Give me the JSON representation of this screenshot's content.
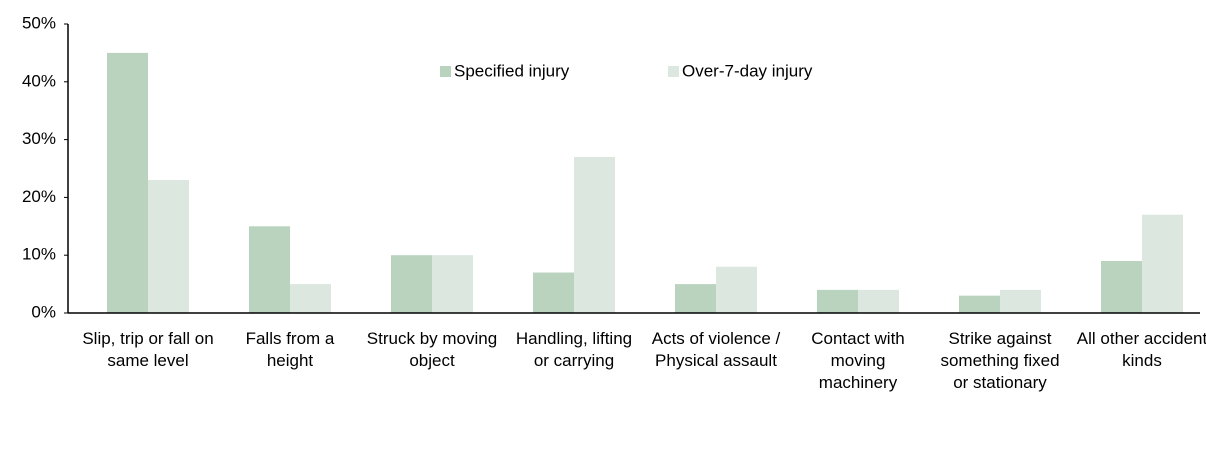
{
  "chart_data": {
    "type": "bar",
    "categories": [
      "Slip, trip or fall on same level",
      "Falls from a height",
      "Struck by moving object",
      "Handling, lifting or carrying",
      "Acts of violence / Physical assault",
      "Contact with moving machinery",
      "Strike against something fixed or stationary",
      "All other accident kinds"
    ],
    "series": [
      {
        "name": "Specified injury",
        "color": "#b9d3bf",
        "values": [
          45,
          15,
          10,
          7,
          5,
          4,
          3,
          9
        ]
      },
      {
        "name": "Over-7-day injury",
        "color": "#dbe7df",
        "values": [
          23,
          5,
          10,
          27,
          8,
          4,
          4,
          17
        ]
      }
    ],
    "ylim": [
      0,
      50
    ],
    "yticks": [
      {
        "value": 0,
        "label": "0%"
      },
      {
        "value": 10,
        "label": "10%"
      },
      {
        "value": 20,
        "label": "20%"
      },
      {
        "value": 30,
        "label": "30%"
      },
      {
        "value": 40,
        "label": "40%"
      },
      {
        "value": 50,
        "label": "50%"
      }
    ],
    "grid": false,
    "legend": "top"
  }
}
